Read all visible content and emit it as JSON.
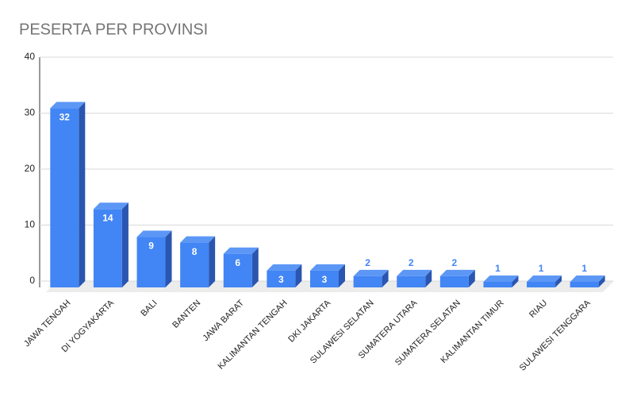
{
  "chart_data": {
    "type": "bar3d",
    "title": "PESERTA PER PROVINSI",
    "categories": [
      "JAWA TENGAH",
      "DI YOGYAKARTA",
      "BALI",
      "BANTEN",
      "JAWA BARAT",
      "KALIMANTAN TENGAH",
      "DKI JAKARTA",
      "SULAWESI SELATAN",
      "SUMATERA UTARA",
      "SUMATERA SELATAN",
      "KALIMANTAN TIMUR",
      "RIAU",
      "SULAWESI TENGGARA"
    ],
    "values": [
      32,
      14,
      9,
      8,
      6,
      3,
      3,
      2,
      2,
      2,
      1,
      1,
      1
    ],
    "color": "#4285f4",
    "ylim": [
      0,
      40
    ],
    "yticks": [
      0,
      10,
      20,
      30,
      40
    ],
    "grid": true
  }
}
